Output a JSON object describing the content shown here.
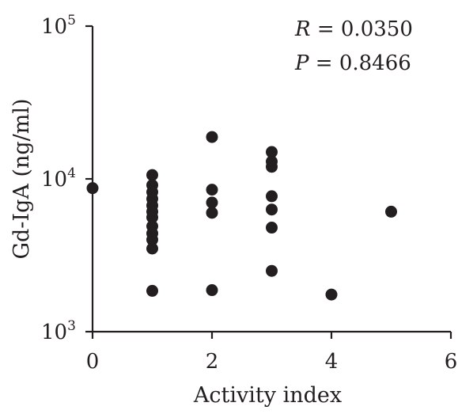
{
  "chart_data": {
    "type": "scatter",
    "xlabel": "Activity index",
    "ylabel": "Gd-IgA (ng/ml)",
    "yscale": "log",
    "xlim": [
      0,
      6
    ],
    "ylim": [
      1000,
      100000
    ],
    "x_ticks": [
      {
        "value": 0,
        "label": "0"
      },
      {
        "value": 2,
        "label": "2"
      },
      {
        "value": 4,
        "label": "4"
      },
      {
        "value": 6,
        "label": "6"
      }
    ],
    "y_ticks": [
      {
        "value": 1000,
        "base": "10",
        "exp": "3"
      },
      {
        "value": 10000,
        "base": "10",
        "exp": "4"
      },
      {
        "value": 100000,
        "base": "10",
        "exp": "5"
      }
    ],
    "stats": {
      "r": {
        "var": "R",
        "text": " = 0.0350"
      },
      "p": {
        "var": "P",
        "text": " = 0.8466"
      }
    },
    "grid": false,
    "points": [
      {
        "x": 0,
        "y": 8700
      },
      {
        "x": 1,
        "y": 10600
      },
      {
        "x": 1,
        "y": 9100
      },
      {
        "x": 1,
        "y": 8200
      },
      {
        "x": 1,
        "y": 7400
      },
      {
        "x": 1,
        "y": 6700
      },
      {
        "x": 1,
        "y": 6100
      },
      {
        "x": 1,
        "y": 5600
      },
      {
        "x": 1,
        "y": 4900
      },
      {
        "x": 1,
        "y": 4400
      },
      {
        "x": 1,
        "y": 4000
      },
      {
        "x": 1,
        "y": 3500
      },
      {
        "x": 1,
        "y": 1850
      },
      {
        "x": 2,
        "y": 18800
      },
      {
        "x": 2,
        "y": 8500
      },
      {
        "x": 2,
        "y": 7000
      },
      {
        "x": 2,
        "y": 6000
      },
      {
        "x": 2,
        "y": 1870
      },
      {
        "x": 3,
        "y": 15000
      },
      {
        "x": 3,
        "y": 13000
      },
      {
        "x": 3,
        "y": 12000
      },
      {
        "x": 3,
        "y": 7700
      },
      {
        "x": 3,
        "y": 6300
      },
      {
        "x": 3,
        "y": 4800
      },
      {
        "x": 3,
        "y": 2500
      },
      {
        "x": 4,
        "y": 1750
      },
      {
        "x": 5,
        "y": 6100
      }
    ]
  }
}
